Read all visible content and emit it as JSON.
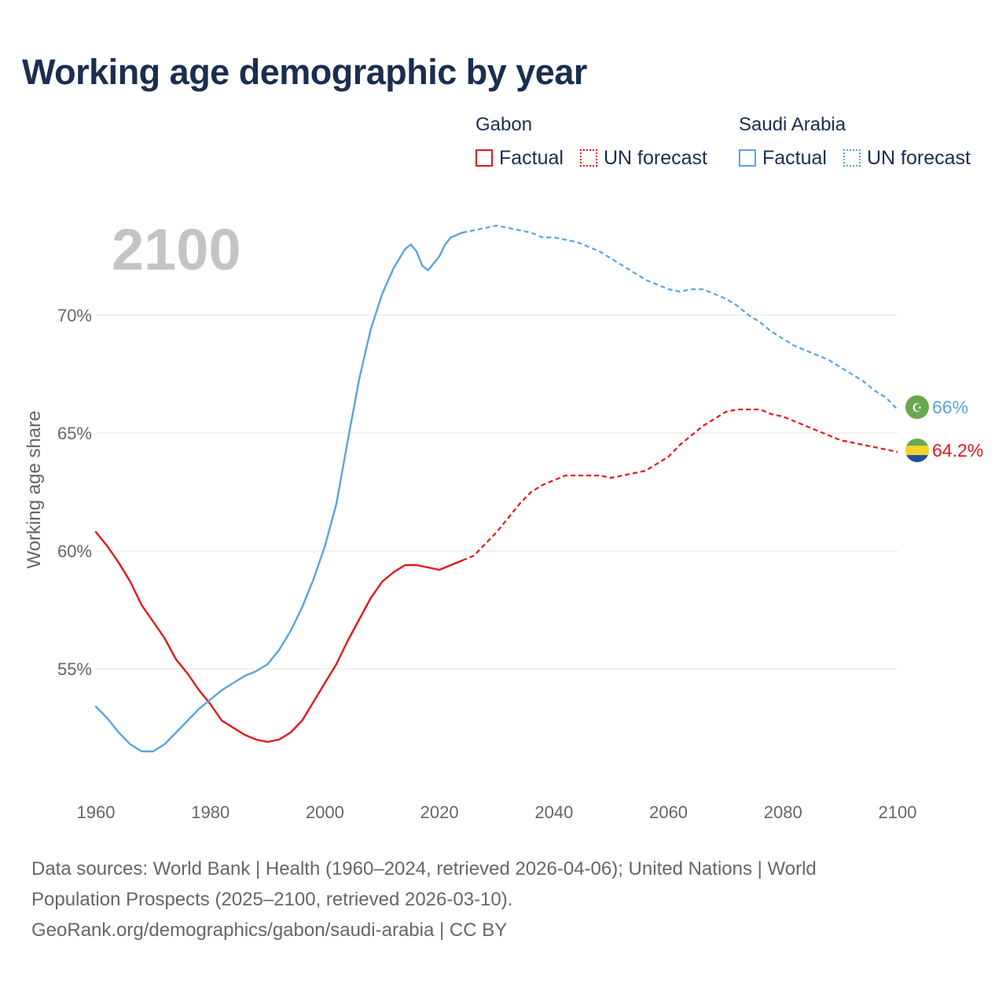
{
  "title": "Working age demographic by year",
  "legend": {
    "groups": [
      {
        "name": "Gabon",
        "color": "#e8141b",
        "factual_label": "Factual",
        "forecast_label": "UN forecast"
      },
      {
        "name": "Saudi Arabia",
        "color": "#5ba3e0",
        "forecast_color": "#5ba3c8",
        "factual_label": "Factual",
        "forecast_label": "UN forecast"
      }
    ]
  },
  "footer": {
    "line1": "Data sources: World Bank | Health (1960–2024, retrieved 2026-04-06); United Nations | World",
    "line2": "Population Prospects (2025–2100, retrieved 2026-03-10).",
    "line3": "GeoRank.org/demographics/gabon/saudi-arabia | CC BY"
  },
  "chart_data": {
    "type": "line",
    "year_watermark": "2100",
    "ylabel": "Working age share",
    "xlabel": "",
    "xlim": [
      1960,
      2100
    ],
    "ylim": [
      50,
      75
    ],
    "x_ticks": [
      1960,
      1980,
      2000,
      2020,
      2040,
      2060,
      2080,
      2100
    ],
    "x_tick_labels": [
      "1960",
      "1980",
      "2000",
      "2020",
      "2040",
      "2060",
      "2080",
      "2100"
    ],
    "y_ticks": [
      55,
      60,
      65,
      70
    ],
    "y_tick_labels": [
      "55%",
      "60%",
      "65%",
      "70%"
    ],
    "grid": true,
    "series": [
      {
        "name": "Gabon",
        "color": "#e8141b",
        "end_label": "64.2%",
        "flag": "gabon-flag",
        "factual": {
          "x": [
            1960,
            1962,
            1964,
            1966,
            1968,
            1970,
            1972,
            1974,
            1976,
            1978,
            1980,
            1982,
            1984,
            1986,
            1988,
            1990,
            1992,
            1994,
            1996,
            1998,
            2000,
            2002,
            2004,
            2006,
            2008,
            2010,
            2012,
            2014,
            2016,
            2018,
            2020,
            2022,
            2024
          ],
          "y": [
            60.8,
            60.2,
            59.5,
            58.7,
            57.7,
            57.0,
            56.3,
            55.4,
            54.8,
            54.1,
            53.5,
            52.8,
            52.5,
            52.2,
            52.0,
            51.9,
            52.0,
            52.3,
            52.8,
            53.6,
            54.4,
            55.2,
            56.2,
            57.1,
            58.0,
            58.7,
            59.1,
            59.4,
            59.4,
            59.3,
            59.2,
            59.4,
            59.6
          ]
        },
        "forecast": {
          "x": [
            2024,
            2026,
            2028,
            2030,
            2032,
            2034,
            2036,
            2038,
            2040,
            2042,
            2044,
            2046,
            2048,
            2050,
            2052,
            2054,
            2056,
            2058,
            2060,
            2062,
            2064,
            2066,
            2068,
            2070,
            2072,
            2074,
            2076,
            2078,
            2080,
            2082,
            2084,
            2086,
            2088,
            2090,
            2092,
            2094,
            2096,
            2098,
            2100
          ],
          "y": [
            59.6,
            59.8,
            60.3,
            60.8,
            61.4,
            62.0,
            62.5,
            62.8,
            63.0,
            63.2,
            63.2,
            63.2,
            63.2,
            63.1,
            63.2,
            63.3,
            63.4,
            63.7,
            64.0,
            64.5,
            64.9,
            65.3,
            65.6,
            65.9,
            66.0,
            66.0,
            66.0,
            65.8,
            65.7,
            65.5,
            65.3,
            65.1,
            64.9,
            64.7,
            64.6,
            64.5,
            64.4,
            64.3,
            64.2
          ]
        }
      },
      {
        "name": "Saudi Arabia",
        "color": "#5ba3e0",
        "end_label": "66%",
        "flag": "saudi-arabia-flag",
        "factual": {
          "x": [
            1960,
            1962,
            1964,
            1966,
            1968,
            1970,
            1972,
            1974,
            1976,
            1978,
            1980,
            1982,
            1984,
            1986,
            1988,
            1990,
            1992,
            1994,
            1996,
            1998,
            2000,
            2002,
            2004,
            2006,
            2008,
            2010,
            2012,
            2014,
            2015,
            2016,
            2017,
            2018,
            2019,
            2020,
            2021,
            2022,
            2023,
            2024
          ],
          "y": [
            53.4,
            52.9,
            52.3,
            51.8,
            51.5,
            51.5,
            51.8,
            52.3,
            52.8,
            53.3,
            53.7,
            54.1,
            54.4,
            54.7,
            54.9,
            55.2,
            55.8,
            56.6,
            57.6,
            58.8,
            60.2,
            62.0,
            64.7,
            67.3,
            69.4,
            70.9,
            72.0,
            72.8,
            73.0,
            72.7,
            72.1,
            71.9,
            72.2,
            72.5,
            73.0,
            73.3,
            73.4,
            73.5
          ]
        },
        "forecast": {
          "x": [
            2024,
            2026,
            2028,
            2030,
            2032,
            2034,
            2036,
            2038,
            2040,
            2042,
            2044,
            2046,
            2048,
            2050,
            2052,
            2054,
            2056,
            2058,
            2060,
            2062,
            2064,
            2066,
            2068,
            2070,
            2072,
            2074,
            2076,
            2078,
            2080,
            2082,
            2084,
            2086,
            2088,
            2090,
            2092,
            2094,
            2096,
            2098,
            2100
          ],
          "y": [
            73.5,
            73.6,
            73.7,
            73.8,
            73.7,
            73.6,
            73.5,
            73.3,
            73.3,
            73.2,
            73.1,
            72.9,
            72.7,
            72.4,
            72.1,
            71.8,
            71.5,
            71.3,
            71.1,
            71.0,
            71.1,
            71.1,
            70.9,
            70.7,
            70.4,
            70.0,
            69.7,
            69.3,
            69.0,
            68.7,
            68.5,
            68.3,
            68.1,
            67.8,
            67.5,
            67.2,
            66.8,
            66.5,
            66.0
          ]
        }
      }
    ]
  }
}
